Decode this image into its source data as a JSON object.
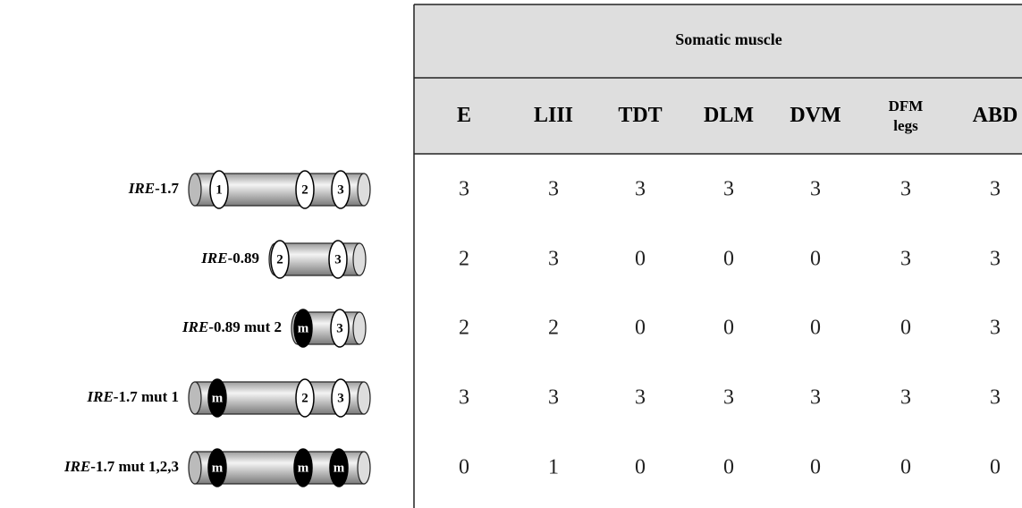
{
  "table": {
    "title": "Somatic muscle",
    "columns": [
      [
        "E"
      ],
      [
        "LIII"
      ],
      [
        "TDT"
      ],
      [
        "DLM"
      ],
      [
        "DVM"
      ],
      [
        "DFM",
        "legs"
      ],
      [
        "ABD"
      ]
    ],
    "rows": [
      {
        "label": [
          "IRE",
          "-1.7"
        ],
        "elements": [
          "1",
          "2",
          "3"
        ],
        "values": [
          3,
          3,
          3,
          3,
          3,
          3,
          3
        ]
      },
      {
        "label": [
          "IRE",
          "-0.89"
        ],
        "elements": [
          "2",
          "3"
        ],
        "values": [
          2,
          3,
          0,
          0,
          0,
          3,
          3
        ]
      },
      {
        "label": [
          "IRE",
          "-0.89 mut 2"
        ],
        "elements": [
          "m",
          "3"
        ],
        "values": [
          2,
          2,
          0,
          0,
          0,
          0,
          3
        ]
      },
      {
        "label": [
          "IRE",
          "-1.7 mut 1"
        ],
        "elements": [
          "m",
          "2",
          "3"
        ],
        "values": [
          3,
          3,
          3,
          3,
          3,
          3,
          3
        ]
      },
      {
        "label": [
          "IRE",
          "-1.7 mut 1,2,3"
        ],
        "elements": [
          "m",
          "m",
          "m"
        ],
        "values": [
          0,
          1,
          0,
          0,
          0,
          0,
          0
        ]
      }
    ]
  }
}
